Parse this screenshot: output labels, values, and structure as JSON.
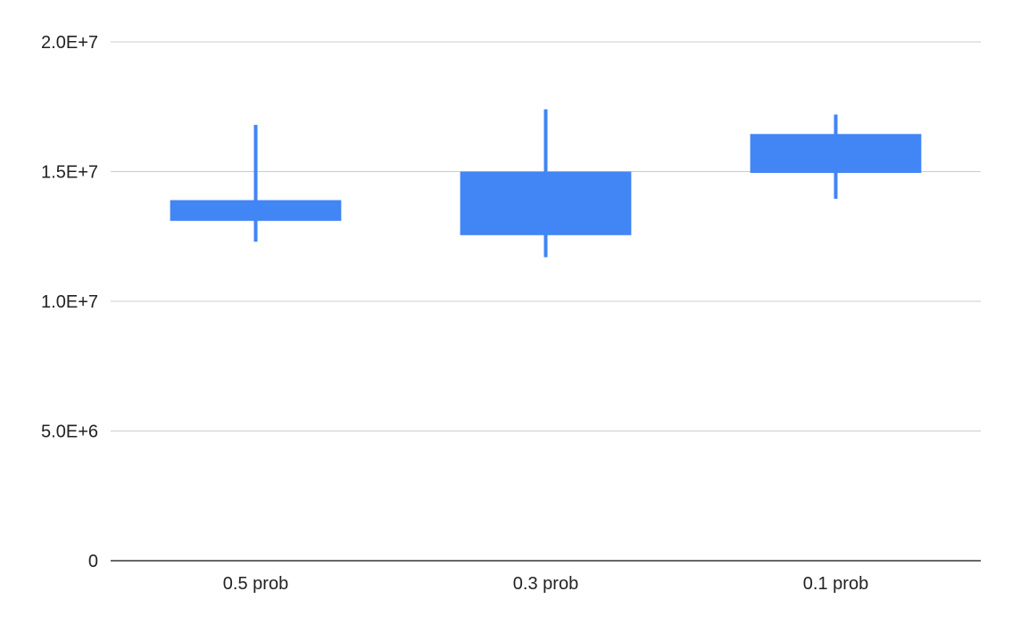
{
  "chart_data": {
    "type": "candlestick",
    "title": "",
    "xlabel": "",
    "ylabel": "",
    "categories": [
      "0.5 prob",
      "0.3 prob",
      "0.1 prob"
    ],
    "series": [
      {
        "low": [
          12300000,
          11700000,
          13950000
        ],
        "open": [
          13100000,
          12550000,
          14950000
        ],
        "close": [
          13900000,
          15000000,
          16450000
        ],
        "high": [
          16800000,
          17400000,
          17200000
        ]
      }
    ],
    "ylim": [
      0,
      20000000
    ],
    "yticks": [
      0,
      5000000,
      10000000,
      15000000,
      20000000
    ],
    "ytick_labels": [
      "0",
      "5.0E+6",
      "1.0E+7",
      "1.5E+7",
      "2.0E+7"
    ],
    "grid": true,
    "legend": "none",
    "colors": {
      "candle": "#4285f4",
      "grid": "#cccccc",
      "axis": "#333333",
      "text": "#222222"
    }
  }
}
